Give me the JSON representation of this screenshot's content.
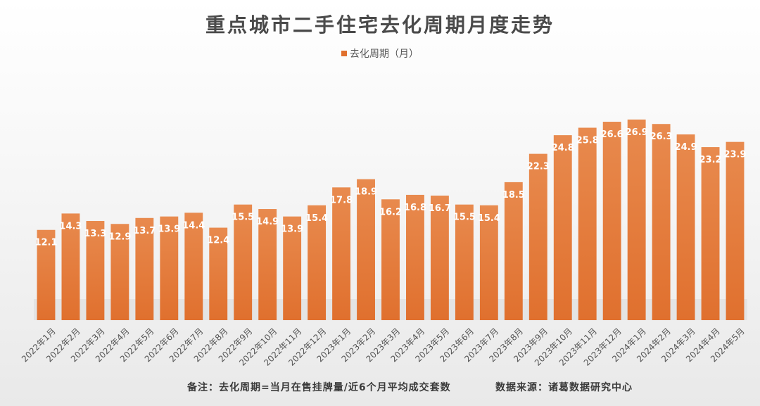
{
  "colors": {
    "bar": "#e0702e",
    "bar_light": "#e88a4e",
    "value_label": "#ffffff",
    "tick_label": "#555555"
  },
  "footnote": {
    "note": "备注：去化周期=当月在售挂牌量/近6个月平均成交套数",
    "source": "数据来源：诸葛数据研究中心"
  },
  "chart_data": {
    "type": "bar",
    "title": "重点城市二手住宅去化周期月度走势",
    "legend_position": "top",
    "grid": false,
    "ylim": [
      0,
      30
    ],
    "categories": [
      "2022年1月",
      "2022年2月",
      "2022年3月",
      "2022年4月",
      "2022年5月",
      "2022年6月",
      "2022年7月",
      "2022年8月",
      "2022年9月",
      "2022年10月",
      "2022年11月",
      "2022年12月",
      "2023年1月",
      "2023年2月",
      "2023年3月",
      "2023年4月",
      "2023年5月",
      "2023年6月",
      "2023年7月",
      "2023年8月",
      "2023年9月",
      "2023年10月",
      "2023年11月",
      "2023年12月",
      "2024年1月",
      "2024年2月",
      "2024年3月",
      "2024年4月",
      "2024年5月"
    ],
    "series": [
      {
        "name": "去化周期（月）",
        "values": [
          12.1,
          14.3,
          13.3,
          12.9,
          13.7,
          13.9,
          14.4,
          12.4,
          15.5,
          14.9,
          13.9,
          15.4,
          17.8,
          18.9,
          16.2,
          16.8,
          16.7,
          15.5,
          15.4,
          18.5,
          22.3,
          24.8,
          25.8,
          26.6,
          26.9,
          26.3,
          24.9,
          23.2,
          23.9
        ]
      }
    ]
  }
}
